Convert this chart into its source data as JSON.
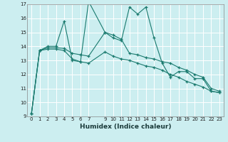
{
  "xlabel": "Humidex (Indice chaleur)",
  "bg_color": "#cceef0",
  "grid_color": "#ffffff",
  "line_color": "#1a7a6e",
  "xlim": [
    -0.5,
    23.5
  ],
  "ylim": [
    9,
    17
  ],
  "xticks": [
    0,
    1,
    2,
    3,
    4,
    5,
    6,
    7,
    9,
    10,
    11,
    12,
    13,
    14,
    15,
    16,
    17,
    18,
    19,
    20,
    21,
    22,
    23
  ],
  "yticks": [
    9,
    10,
    11,
    12,
    13,
    14,
    15,
    16,
    17
  ],
  "series1_x": [
    0,
    1,
    2,
    3,
    4,
    5,
    6,
    7,
    9,
    10,
    11,
    12,
    13,
    14,
    15,
    16,
    17,
    18,
    19,
    20,
    21,
    22,
    23
  ],
  "series1_y": [
    9.2,
    13.7,
    14.0,
    14.0,
    15.8,
    13.0,
    12.9,
    17.2,
    15.0,
    14.6,
    14.4,
    16.8,
    16.3,
    16.8,
    14.6,
    12.8,
    11.8,
    12.2,
    12.2,
    11.7,
    11.7,
    10.8,
    10.7
  ],
  "series2_x": [
    0,
    1,
    2,
    3,
    4,
    5,
    6,
    7,
    9,
    10,
    11,
    12,
    13,
    14,
    15,
    16,
    17,
    18,
    19,
    20,
    21,
    22,
    23
  ],
  "series2_y": [
    9.2,
    13.7,
    13.9,
    13.9,
    13.85,
    13.5,
    13.4,
    13.3,
    15.0,
    14.8,
    14.5,
    13.5,
    13.4,
    13.2,
    13.1,
    12.9,
    12.8,
    12.5,
    12.3,
    12.0,
    11.8,
    11.0,
    10.8
  ],
  "series3_x": [
    0,
    1,
    2,
    3,
    4,
    5,
    6,
    7,
    9,
    10,
    11,
    12,
    13,
    14,
    15,
    16,
    17,
    18,
    19,
    20,
    21,
    22,
    23
  ],
  "series3_y": [
    9.2,
    13.7,
    13.8,
    13.8,
    13.7,
    13.1,
    12.9,
    12.8,
    13.6,
    13.3,
    13.1,
    13.0,
    12.8,
    12.6,
    12.5,
    12.3,
    12.0,
    11.8,
    11.5,
    11.3,
    11.1,
    10.8,
    10.7
  ]
}
